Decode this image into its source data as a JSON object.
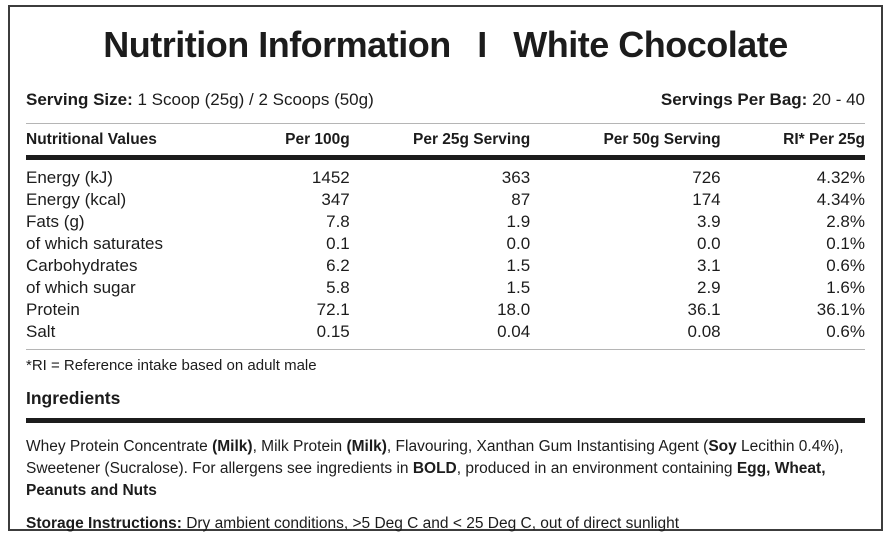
{
  "title": {
    "product": "Nutrition Information",
    "separator": "I",
    "flavor": "White Chocolate"
  },
  "serving": {
    "size_label": "Serving Size:",
    "size_value": "1 Scoop (25g) / 2 Scoops (50g)",
    "per_bag_label": "Servings Per Bag:",
    "per_bag_value": "20 - 40"
  },
  "table": {
    "columns": [
      "Nutritional Values",
      "Per 100g",
      "Per 25g Serving",
      "Per 50g Serving",
      "RI* Per 25g"
    ],
    "rows": [
      [
        "Energy (kJ)",
        "1452",
        "363",
        "726",
        "4.32%"
      ],
      [
        "Energy (kcal)",
        "347",
        "87",
        "174",
        "4.34%"
      ],
      [
        "Fats (g)",
        "7.8",
        "1.9",
        "3.9",
        "2.8%"
      ],
      [
        "of which saturates",
        "0.1",
        "0.0",
        "0.0",
        "0.1%"
      ],
      [
        "Carbohydrates",
        "6.2",
        "1.5",
        "3.1",
        "0.6%"
      ],
      [
        "of which sugar",
        "5.8",
        "1.5",
        "2.9",
        "1.6%"
      ],
      [
        "Protein",
        "72.1",
        "18.0",
        "36.1",
        "36.1%"
      ],
      [
        "Salt",
        "0.15",
        "0.04",
        "0.08",
        "0.6%"
      ]
    ]
  },
  "footnote": "*RI = Reference intake based on adult male",
  "ingredients": {
    "heading": "Ingredients",
    "segments": [
      {
        "text": "Whey Protein Concentrate ",
        "bold": false
      },
      {
        "text": "(Milk)",
        "bold": true
      },
      {
        "text": ", Milk Protein ",
        "bold": false
      },
      {
        "text": "(Milk)",
        "bold": true
      },
      {
        "text": ", Flavouring, Xanthan Gum Instantising Agent (",
        "bold": false
      },
      {
        "text": "Soy",
        "bold": true
      },
      {
        "text": " Lecithin 0.4%), Sweetener (Sucralose). For allergens see ingredients in ",
        "bold": false
      },
      {
        "text": "BOLD",
        "bold": true
      },
      {
        "text": ", produced in an environment containing ",
        "bold": false
      },
      {
        "text": "Egg, Wheat, Peanuts and Nuts",
        "bold": true
      }
    ]
  },
  "storage": {
    "segments": [
      {
        "text": "Storage Instructions:",
        "bold": true
      },
      {
        "text": " Dry ambient conditions, >5 Deg C and < 25 Deg C,  out of direct sunlight",
        "bold": false
      }
    ]
  },
  "colors": {
    "text": "#1c1c1c",
    "border": "#3c3c3c",
    "thick_rule": "#1c1c1c",
    "thin_rule": "#b5b5b5"
  }
}
